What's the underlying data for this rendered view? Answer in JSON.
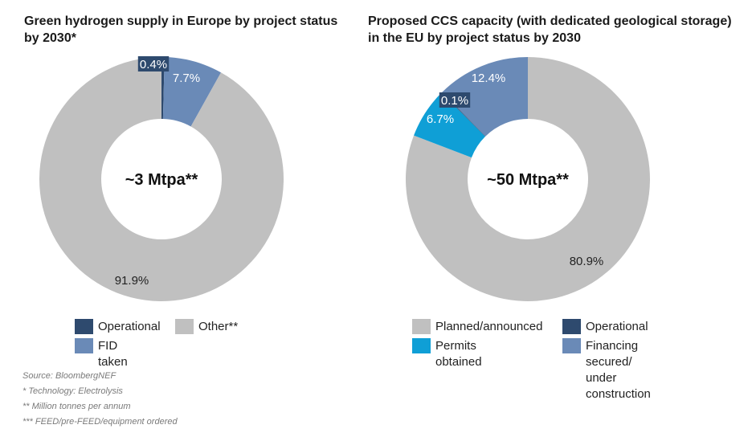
{
  "chart_data": [
    {
      "type": "pie",
      "variant": "donut",
      "title": "Green hydrogen supply in Europe by project status by 2030*",
      "center_label": "~3 Mtpa**",
      "categories": [
        "Operational",
        "FID taken",
        "Other**"
      ],
      "values": [
        0.4,
        7.7,
        91.9
      ],
      "labels": [
        "0.4%",
        "7.7%",
        "91.9%"
      ],
      "colors": [
        "#2e4a6e",
        "#6a8ab7",
        "#c0c0c0"
      ],
      "legend": [
        "Operational",
        "Other**",
        "FID taken"
      ],
      "legend_colors": [
        "#2e4a6e",
        "#c0c0c0",
        "#6a8ab7"
      ],
      "legend_position": "bottom"
    },
    {
      "type": "pie",
      "variant": "donut",
      "title": "Proposed CCS capacity (with dedicated geological storage) in the EU by project status by 2030",
      "center_label": "~50 Mtpa**",
      "categories": [
        "Planned/announced",
        "Permits obtained",
        "Operational",
        "Financing secured/ under construction"
      ],
      "values": [
        80.9,
        6.7,
        0.1,
        12.4
      ],
      "labels": [
        "80.9%",
        "6.7%",
        "0.1%",
        "12.4%"
      ],
      "colors": [
        "#c0c0c0",
        "#0f9fd6",
        "#2e4a6e",
        "#6a8ab7"
      ],
      "legend": [
        "Planned/announced",
        "Operational",
        "Permits obtained",
        "Financing secured/\nunder construction"
      ],
      "legend_colors": [
        "#c0c0c0",
        "#2e4a6e",
        "#0f9fd6",
        "#6a8ab7"
      ],
      "legend_position": "bottom"
    }
  ],
  "titles": {
    "left": "Green hydrogen supply in Europe by project status by 2030*",
    "right": "Proposed CCS capacity (with dedicated geological storage) in the EU by project status by 2030"
  },
  "footnotes": [
    "Source: BloombergNEF",
    "* Technology: Electrolysis",
    "** Million tonnes per annum",
    "*** FEED/pre-FEED/equipment ordered"
  ]
}
